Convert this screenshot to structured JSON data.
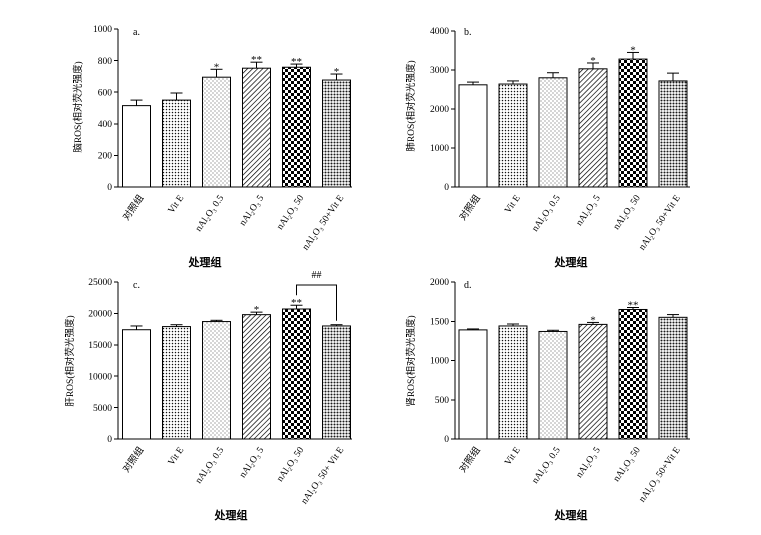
{
  "chart_data": [
    {
      "type": "bar",
      "panel_label": "a.",
      "ylabel": "脑ROS(相对荧光强度)",
      "xlabel": "处理组",
      "categories": [
        "对照组",
        "Vit E",
        "nAl₂O₃ 0.5",
        "nAl₂O₃ 5",
        "nAl₂O₃ 50",
        "nAl₂O₃ 50+Vit E"
      ],
      "values": [
        515,
        550,
        695,
        752,
        758,
        677
      ],
      "errors": [
        35,
        45,
        50,
        38,
        20,
        38
      ],
      "significance": [
        null,
        null,
        "*",
        "**",
        "**",
        "*"
      ],
      "ylim": [
        0,
        1000
      ],
      "yticks": [
        0,
        200,
        400,
        600,
        800,
        1000
      ]
    },
    {
      "type": "bar",
      "panel_label": "b.",
      "ylabel": "肺ROS(相对荧光强度)",
      "xlabel": "处理组",
      "categories": [
        "对照组",
        "Vit E",
        "nAl₂O₃ 0.5",
        "nAl₂O₃ 5",
        "nAl₂O₃ 50",
        "nAl₂O₃ 50+Vit E"
      ],
      "values": [
        2620,
        2640,
        2800,
        3030,
        3280,
        2720
      ],
      "errors": [
        70,
        80,
        130,
        150,
        170,
        200
      ],
      "significance": [
        null,
        null,
        null,
        "*",
        "*",
        null
      ],
      "ylim": [
        0,
        4000
      ],
      "yticks": [
        0,
        1000,
        2000,
        3000,
        4000
      ]
    },
    {
      "type": "bar",
      "panel_label": "c.",
      "ylabel": "肝ROS(相对荧光强度)",
      "xlabel": "处理组",
      "categories": [
        "对照组",
        "Vit E",
        "nAl₂O₃ 0.5",
        "nAl₂O₃ 5",
        "nAl₂O₃ 50",
        "nAl₂O₃ 50+ Vit E"
      ],
      "values": [
        17400,
        17900,
        18700,
        19800,
        20700,
        18000
      ],
      "errors": [
        600,
        300,
        200,
        400,
        600,
        200
      ],
      "significance": [
        null,
        null,
        null,
        "*",
        "**",
        null
      ],
      "comparison": {
        "from": 4,
        "to": 5,
        "label": "##"
      },
      "ylim": [
        0,
        25000
      ],
      "yticks": [
        0,
        5000,
        10000,
        15000,
        20000,
        25000
      ]
    },
    {
      "type": "bar",
      "panel_label": "d.",
      "ylabel": "肾ROS(相对荧光强度)",
      "xlabel": "处理组",
      "categories": [
        "对照组",
        "Vit E",
        "nAl₂O₃ 0.5",
        "nAl₂O₃ 5",
        "nAl₂O₃ 50",
        "nAl₂O₃ 50+Vit E"
      ],
      "values": [
        1390,
        1440,
        1370,
        1460,
        1650,
        1550
      ],
      "errors": [
        12,
        25,
        15,
        25,
        25,
        35
      ],
      "significance": [
        null,
        null,
        null,
        "*",
        "**",
        null
      ],
      "ylim": [
        0,
        2000
      ],
      "yticks": [
        0,
        500,
        1000,
        1500,
        2000
      ]
    }
  ]
}
